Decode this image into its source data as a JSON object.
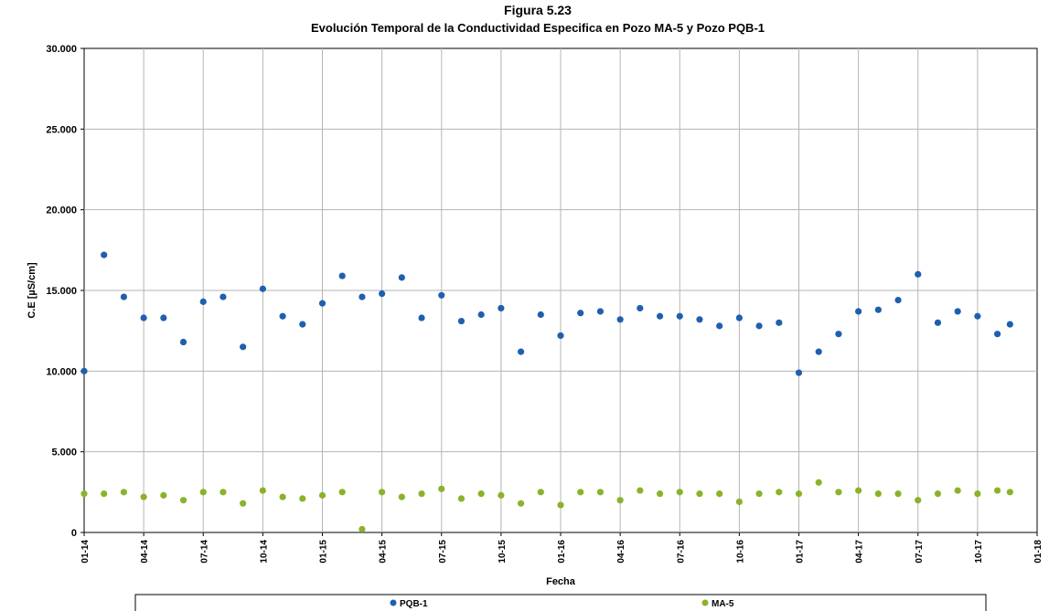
{
  "chart_data": {
    "type": "scatter",
    "title": "Figura 5.23",
    "subtitle": "Evolución Temporal de la Conductividad Especifica en Pozo MA-5 y Pozo PQB-1",
    "xlabel": "Fecha",
    "ylabel": "C.E [µS/cm]",
    "ylim": [
      0,
      30000
    ],
    "xlim": [
      "2014-01",
      "2018-01"
    ],
    "y_ticks": [
      "0",
      "5.000",
      "10.000",
      "15.000",
      "20.000",
      "25.000",
      "30.000"
    ],
    "y_tick_values": [
      0,
      5000,
      10000,
      15000,
      20000,
      25000,
      30000
    ],
    "x_ticks": [
      "01-14",
      "04-14",
      "07-14",
      "10-14",
      "01-15",
      "04-15",
      "07-15",
      "10-15",
      "01-16",
      "04-16",
      "07-16",
      "10-16",
      "01-17",
      "04-17",
      "07-17",
      "10-17",
      "01-18"
    ],
    "grid": true,
    "legend_position": "bottom",
    "series": [
      {
        "name": "PQB-1",
        "color": "#1f5fb0",
        "points": [
          [
            "2014-01-01",
            10000
          ],
          [
            "2014-02-01",
            17200
          ],
          [
            "2014-03-01",
            14600
          ],
          [
            "2014-04-01",
            13300
          ],
          [
            "2014-05-01",
            13300
          ],
          [
            "2014-06-01",
            11800
          ],
          [
            "2014-07-01",
            14300
          ],
          [
            "2014-08-01",
            14600
          ],
          [
            "2014-09-01",
            11500
          ],
          [
            "2014-10-01",
            15100
          ],
          [
            "2014-11-01",
            13400
          ],
          [
            "2014-12-01",
            12900
          ],
          [
            "2015-01-01",
            14200
          ],
          [
            "2015-02-01",
            15900
          ],
          [
            "2015-03-01",
            14600
          ],
          [
            "2015-04-01",
            14800
          ],
          [
            "2015-05-01",
            15800
          ],
          [
            "2015-06-01",
            13300
          ],
          [
            "2015-07-01",
            14700
          ],
          [
            "2015-08-01",
            13100
          ],
          [
            "2015-09-01",
            13500
          ],
          [
            "2015-10-01",
            13900
          ],
          [
            "2015-11-01",
            11200
          ],
          [
            "2015-12-01",
            13500
          ],
          [
            "2016-01-01",
            12200
          ],
          [
            "2016-02-01",
            13600
          ],
          [
            "2016-03-01",
            13700
          ],
          [
            "2016-04-01",
            13200
          ],
          [
            "2016-05-01",
            13900
          ],
          [
            "2016-06-01",
            13400
          ],
          [
            "2016-07-01",
            13400
          ],
          [
            "2016-08-01",
            13200
          ],
          [
            "2016-09-01",
            12800
          ],
          [
            "2016-10-01",
            13300
          ],
          [
            "2016-11-01",
            12800
          ],
          [
            "2016-12-01",
            13000
          ],
          [
            "2017-01-01",
            9900
          ],
          [
            "2017-02-01",
            11200
          ],
          [
            "2017-03-01",
            12300
          ],
          [
            "2017-04-01",
            13700
          ],
          [
            "2017-05-01",
            13800
          ],
          [
            "2017-06-01",
            14400
          ],
          [
            "2017-07-01",
            16000
          ],
          [
            "2017-08-01",
            13000
          ],
          [
            "2017-09-01",
            13700
          ],
          [
            "2017-10-01",
            13400
          ],
          [
            "2017-11-01",
            12300
          ],
          [
            "2017-11-20",
            12900
          ]
        ]
      },
      {
        "name": "MA-5",
        "color": "#8bb22a",
        "points": [
          [
            "2014-01-01",
            2400
          ],
          [
            "2014-02-01",
            2400
          ],
          [
            "2014-03-01",
            2500
          ],
          [
            "2014-04-01",
            2200
          ],
          [
            "2014-05-01",
            2300
          ],
          [
            "2014-06-01",
            2000
          ],
          [
            "2014-07-01",
            2500
          ],
          [
            "2014-08-01",
            2500
          ],
          [
            "2014-09-01",
            1800
          ],
          [
            "2014-10-01",
            2600
          ],
          [
            "2014-11-01",
            2200
          ],
          [
            "2014-12-01",
            2100
          ],
          [
            "2015-01-01",
            2300
          ],
          [
            "2015-02-01",
            2500
          ],
          [
            "2015-03-01",
            200
          ],
          [
            "2015-04-01",
            2500
          ],
          [
            "2015-05-01",
            2200
          ],
          [
            "2015-06-01",
            2400
          ],
          [
            "2015-07-01",
            2700
          ],
          [
            "2015-08-01",
            2100
          ],
          [
            "2015-09-01",
            2400
          ],
          [
            "2015-10-01",
            2300
          ],
          [
            "2015-11-01",
            1800
          ],
          [
            "2015-12-01",
            2500
          ],
          [
            "2016-01-01",
            1700
          ],
          [
            "2016-02-01",
            2500
          ],
          [
            "2016-03-01",
            2500
          ],
          [
            "2016-04-01",
            2000
          ],
          [
            "2016-05-01",
            2600
          ],
          [
            "2016-06-01",
            2400
          ],
          [
            "2016-07-01",
            2500
          ],
          [
            "2016-08-01",
            2400
          ],
          [
            "2016-09-01",
            2400
          ],
          [
            "2016-10-01",
            1900
          ],
          [
            "2016-11-01",
            2400
          ],
          [
            "2016-12-01",
            2500
          ],
          [
            "2017-01-01",
            2400
          ],
          [
            "2017-02-01",
            3100
          ],
          [
            "2017-03-01",
            2500
          ],
          [
            "2017-04-01",
            2600
          ],
          [
            "2017-05-01",
            2400
          ],
          [
            "2017-06-01",
            2400
          ],
          [
            "2017-07-01",
            2000
          ],
          [
            "2017-08-01",
            2400
          ],
          [
            "2017-09-01",
            2600
          ],
          [
            "2017-10-01",
            2400
          ],
          [
            "2017-11-01",
            2600
          ],
          [
            "2017-11-20",
            2500
          ]
        ]
      }
    ]
  }
}
